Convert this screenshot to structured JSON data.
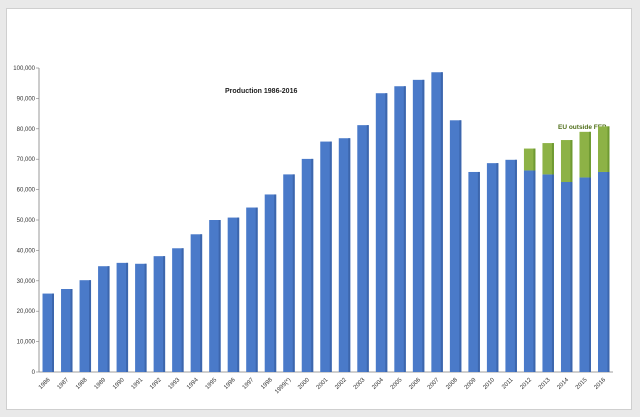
{
  "chart_data": {
    "type": "bar",
    "stacked": true,
    "title": "Production 1986-2016",
    "xlabel": "",
    "ylabel": "",
    "ylim": [
      0,
      100000
    ],
    "yticks": [
      "0",
      "10,000",
      "20,000",
      "30,000",
      "40,000",
      "50,000",
      "60,000",
      "70,000",
      "80,000",
      "90,000",
      "100,000"
    ],
    "categories": [
      "1986",
      "1987",
      "1988",
      "1989",
      "1990",
      "1991",
      "1992",
      "1993",
      "1994",
      "1995",
      "1996",
      "1997",
      "1998",
      "1999(*)",
      "2000",
      "2001",
      "2002",
      "2003",
      "2004",
      "2005",
      "2006",
      "2007",
      "2008",
      "2009",
      "2010",
      "2011",
      "2012",
      "2013",
      "2014",
      "2015",
      "2016"
    ],
    "series": [
      {
        "name": "",
        "color": "#4a7ac9",
        "values": [
          25800,
          27300,
          30200,
          34800,
          35900,
          35600,
          38100,
          40700,
          45300,
          50000,
          50800,
          54100,
          58400,
          65000,
          70100,
          75800,
          76900,
          81200,
          91700,
          94000,
          96100,
          98600,
          82800,
          65800,
          68700,
          69800,
          66300,
          65000,
          62500,
          64000,
          65800
        ]
      },
      {
        "name": "EU outside FEP",
        "color": "#8db246",
        "values": [
          0,
          0,
          0,
          0,
          0,
          0,
          0,
          0,
          0,
          0,
          0,
          0,
          0,
          0,
          0,
          0,
          0,
          0,
          0,
          0,
          0,
          0,
          0,
          0,
          0,
          0,
          7200,
          10300,
          13800,
          15000,
          15000
        ]
      }
    ],
    "grid": false,
    "legend_position": "top-right"
  }
}
